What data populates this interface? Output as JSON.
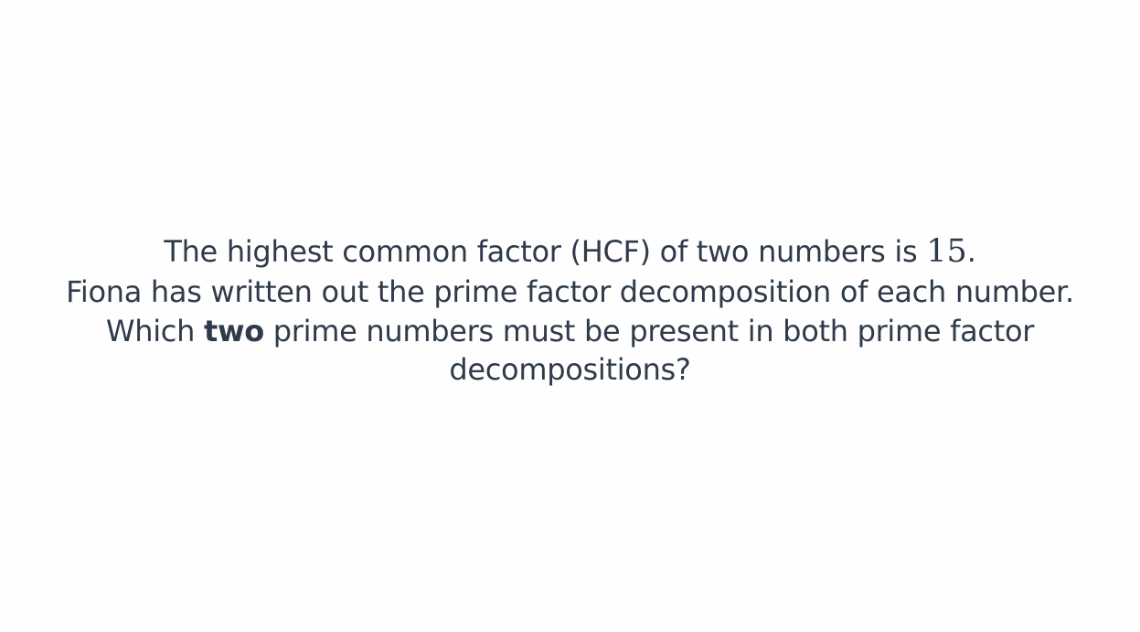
{
  "question": {
    "line1_prefix": "The highest common factor (HCF) of two numbers is ",
    "line1_value": "15",
    "line1_suffix": ".",
    "line2": "Fiona has written out the prime factor decomposition of each number.",
    "line3_prefix": "Which ",
    "line3_emphasis": "two",
    "line3_suffix": " prime numbers must be present in both prime factor decompositions?"
  }
}
